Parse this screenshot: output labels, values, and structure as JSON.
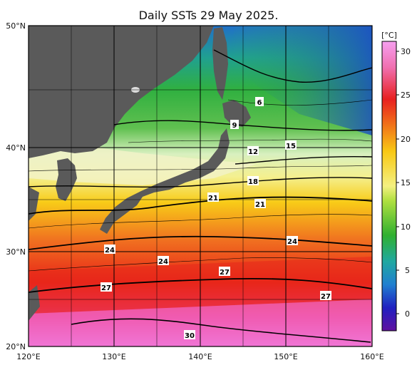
{
  "title": "Daily SSTs 29 May 2025.",
  "colorbar": {
    "unit": "[°C]",
    "min": -3,
    "max": 32,
    "ticks": [
      "30",
      "25",
      "20",
      "15",
      "10",
      "5",
      "0"
    ]
  },
  "axes": {
    "lat_labels": [
      "50°N",
      "40°N",
      "30°N",
      "20°N"
    ],
    "lon_labels": [
      "120°E",
      "130°E",
      "140°E",
      "150°E",
      "160°E"
    ],
    "lat_range": [
      20,
      50
    ],
    "lon_range": [
      120,
      160
    ]
  },
  "contour_labels": [
    "6",
    "9",
    "12",
    "15",
    "18",
    "21",
    "21",
    "24",
    "24",
    "24",
    "27",
    "27",
    "27",
    "30"
  ],
  "colors": {
    "land": "#5a5a5a",
    "grid": "#000000"
  }
}
